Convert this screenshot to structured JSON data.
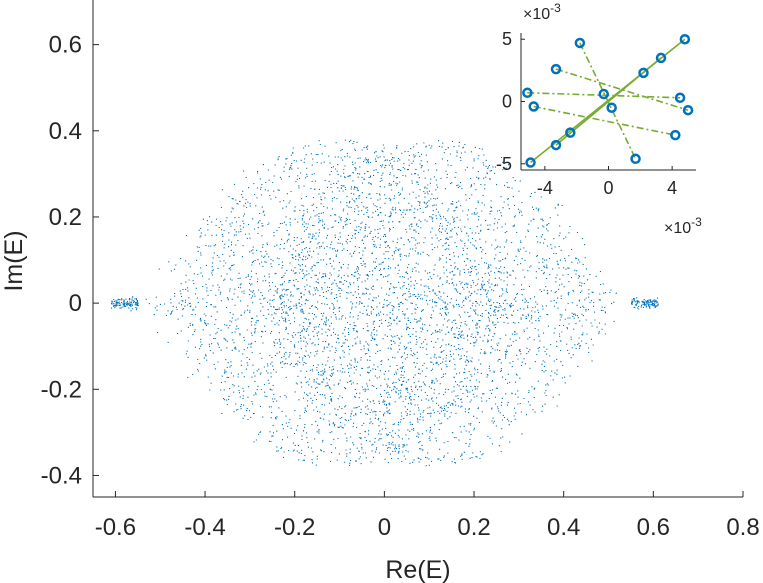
{
  "chart_data": [
    {
      "type": "scatter",
      "xlabel": "Re(E)",
      "ylabel": "Im(E)",
      "xlim": [
        -0.65,
        0.8
      ],
      "ylim": [
        -0.45,
        0.75
      ],
      "xticks": [
        -0.6,
        -0.4,
        -0.2,
        0,
        0.2,
        0.4,
        0.6,
        0.8
      ],
      "xtick_labels": [
        "-0.6",
        "-0.4",
        "-0.2",
        "0",
        "0.2",
        "0.4",
        "0.6",
        "0.8"
      ],
      "yticks": [
        -0.4,
        -0.2,
        0,
        0.2,
        0.4,
        0.6
      ],
      "ytick_labels": [
        "-0.4",
        "-0.2",
        "0",
        "0.2",
        "0.4",
        "0.6"
      ],
      "series_color": "#0072BD",
      "description_points": "dense cloud of eigenvalues; two overlapping lobes centered near Re=-0.1 and Re=+0.1, overall extent Re in [-0.55, 0.55], Im in [-0.38, 0.38]; isolated tails near Re=-0.58 and Re=0.58 at Im=0",
      "lobes": [
        {
          "center_re": -0.1,
          "center_im": 0,
          "half_width_re": 0.45,
          "half_height_im": 0.38
        },
        {
          "center_re": 0.1,
          "center_im": 0,
          "half_width_re": 0.45,
          "half_height_im": 0.38
        }
      ],
      "tails": [
        {
          "re": -0.58,
          "im": 0
        },
        {
          "re": 0.58,
          "im": 0
        }
      ]
    },
    {
      "type": "scatter",
      "role": "inset",
      "xlim": [
        -0.0055,
        0.0055
      ],
      "ylim": [
        -0.0055,
        0.0055
      ],
      "xticks": [
        -0.004,
        0,
        0.004
      ],
      "xtick_labels": [
        "-4",
        "0",
        "4"
      ],
      "yticks": [
        -0.005,
        0,
        0.005
      ],
      "ytick_labels": [
        "-5",
        "0",
        "5"
      ],
      "x_exponent_label": "×10",
      "x_exponent_power": "-3",
      "y_exponent_label": "×10",
      "y_exponent_power": "-3",
      "marker_color": "#0072BD",
      "line_color": "#77AC30",
      "points": [
        {
          "x": -0.0049,
          "y": -0.0049
        },
        {
          "x": -0.0033,
          "y": 0.0026
        },
        {
          "x": -0.0051,
          "y": 0.0007
        },
        {
          "x": -0.0047,
          "y": -0.0004
        },
        {
          "x": -0.0018,
          "y": 0.0047
        },
        {
          "x": -0.0024,
          "y": -0.0025
        },
        {
          "x": -0.0033,
          "y": -0.0035
        },
        {
          "x": -0.0003,
          "y": 0.0006
        },
        {
          "x": 0.0002,
          "y": -0.0005
        },
        {
          "x": 0.0022,
          "y": 0.0023
        },
        {
          "x": 0.0033,
          "y": 0.0035
        },
        {
          "x": 0.0048,
          "y": 0.005
        },
        {
          "x": 0.0045,
          "y": 0.0003
        },
        {
          "x": 0.005,
          "y": -0.0007
        },
        {
          "x": 0.0042,
          "y": -0.0027
        },
        {
          "x": 0.0017,
          "y": -0.0046
        }
      ],
      "segments": [
        {
          "from": 0,
          "to": 11,
          "style": "solid"
        },
        {
          "from": 1,
          "to": 13,
          "style": "dashdot"
        },
        {
          "from": 2,
          "to": 12,
          "style": "dashdot"
        },
        {
          "from": 3,
          "to": 14,
          "style": "dashdot"
        },
        {
          "from": 4,
          "to": 15,
          "style": "dashdot"
        },
        {
          "from": 6,
          "to": 10,
          "style": "solid"
        }
      ]
    }
  ]
}
